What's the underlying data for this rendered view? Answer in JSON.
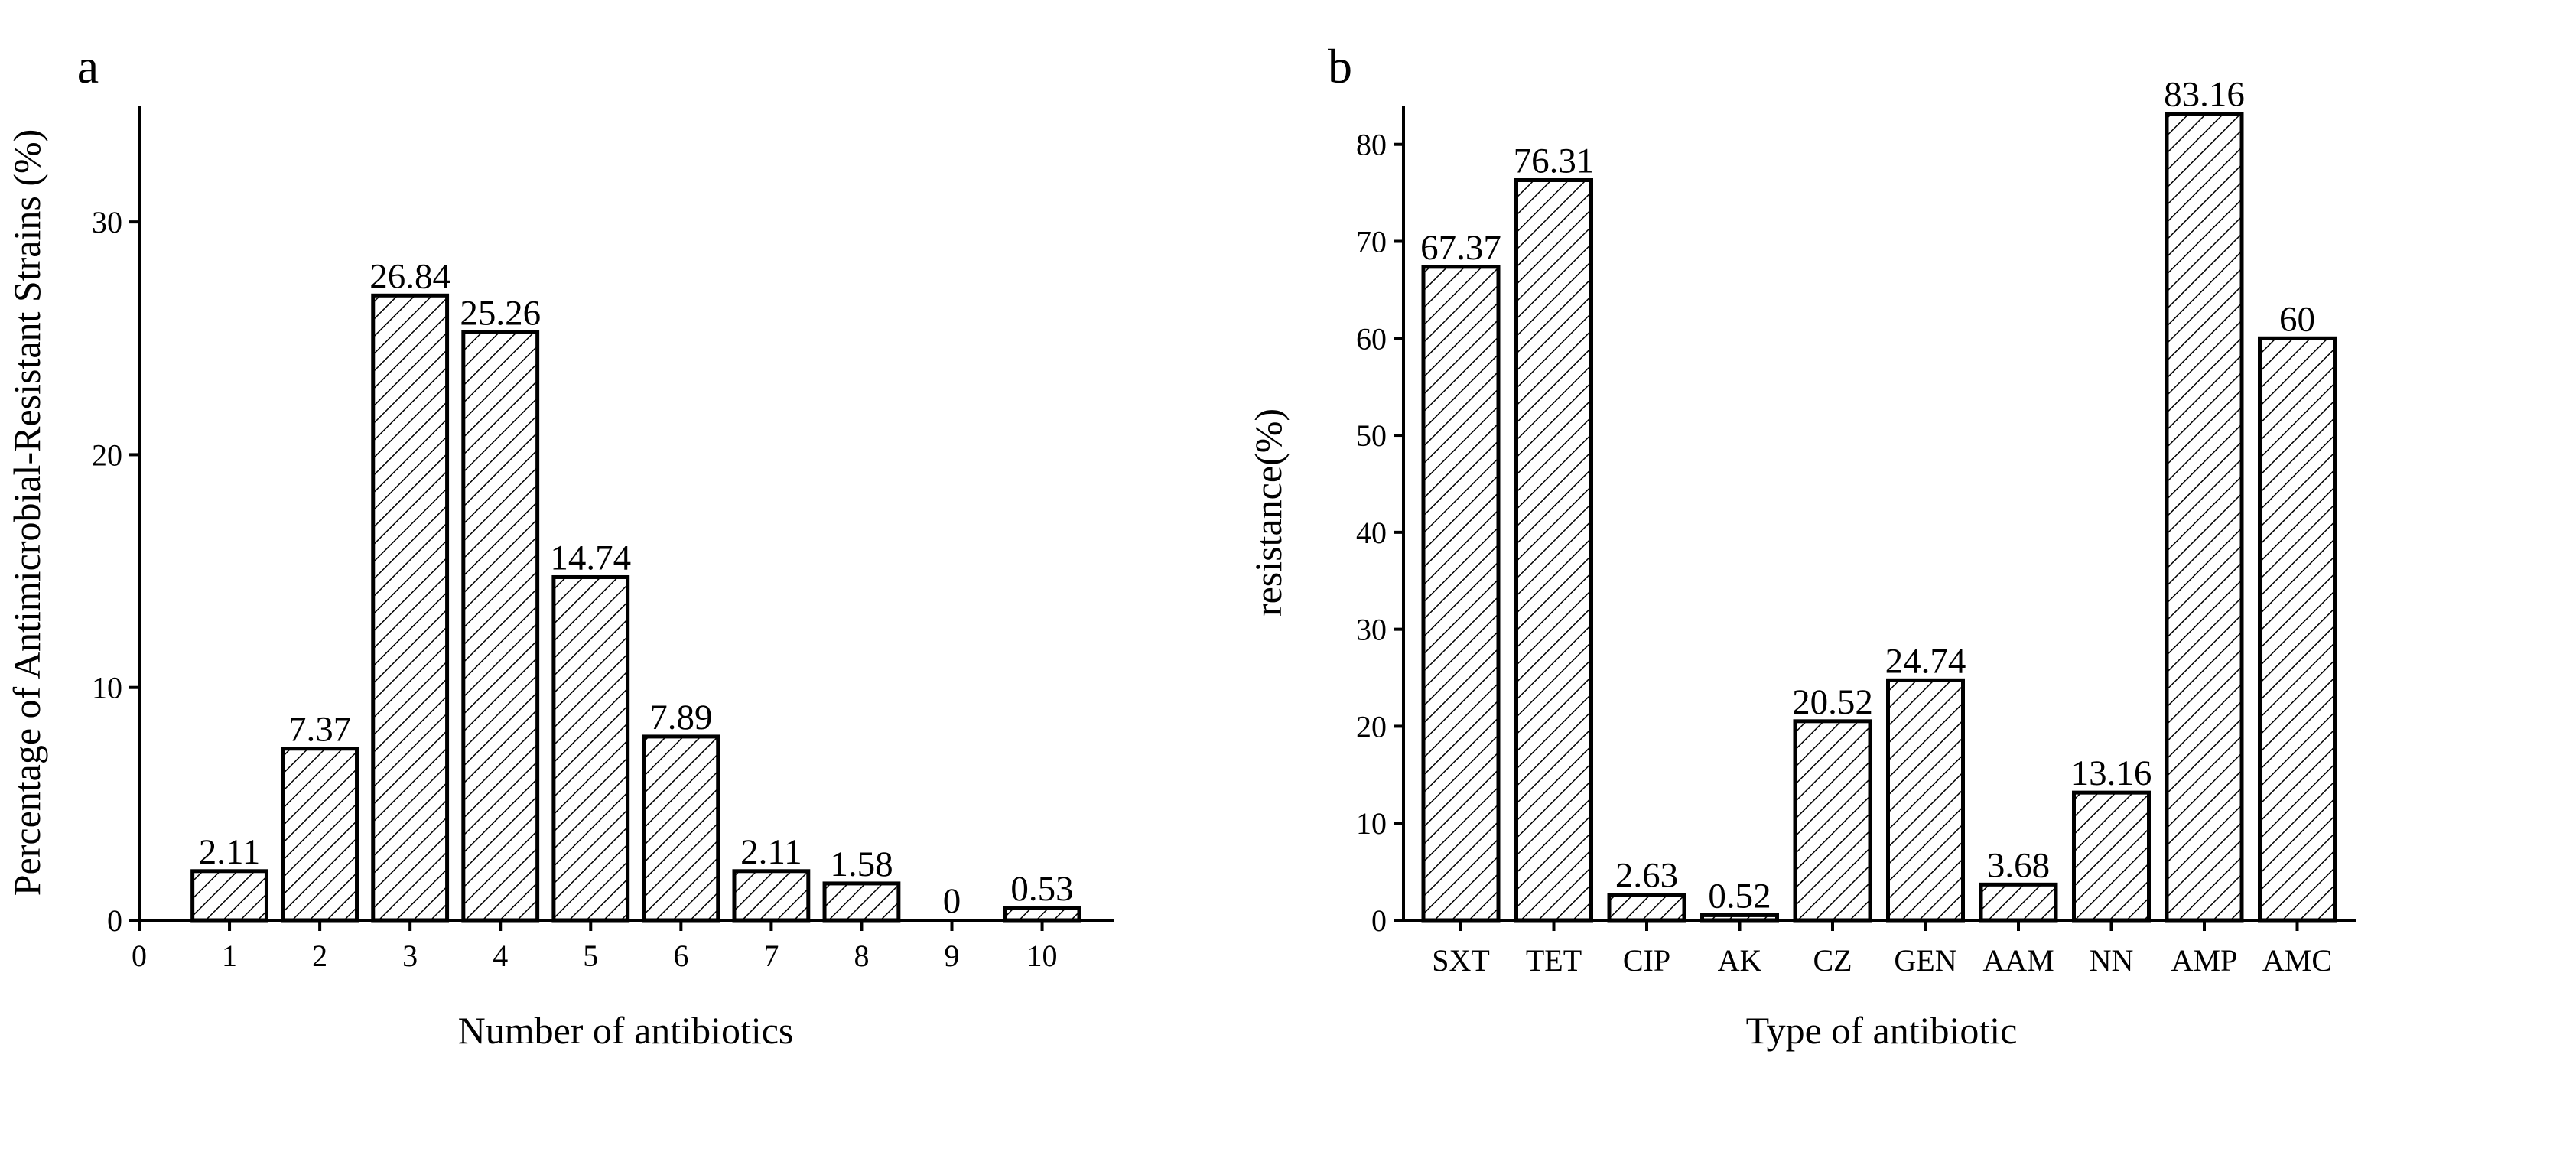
{
  "chart_data": [
    {
      "type": "bar",
      "panel": "a",
      "title": "",
      "xlabel": "Number of antibiotics",
      "ylabel": "Percentage of Antimicrobial-Resistant Strains (%)",
      "x_ticks": [
        "0",
        "1",
        "2",
        "3",
        "4",
        "5",
        "6",
        "7",
        "8",
        "9",
        "10"
      ],
      "categories": [
        "1",
        "2",
        "3",
        "4",
        "5",
        "6",
        "7",
        "8",
        "9",
        "10"
      ],
      "values": [
        2.11,
        7.37,
        26.84,
        25.26,
        14.74,
        7.89,
        2.11,
        1.58,
        0,
        0.53
      ],
      "value_labels": [
        "2.11",
        "7.37",
        "26.84",
        "25.26",
        "14.74",
        "7.89",
        "2.11",
        "1.58",
        "0",
        "0.53"
      ],
      "y_ticks": [
        "0",
        "10",
        "20",
        "30"
      ],
      "ylim": [
        0,
        35
      ],
      "xlim": [
        0,
        10.8
      ],
      "grid": false,
      "legend": "none",
      "fill_pattern": "diagonal hatch"
    },
    {
      "type": "bar",
      "panel": "b",
      "title": "",
      "xlabel": "Type of antibiotic",
      "ylabel": "resistance(%)",
      "categories": [
        "SXT",
        "TET",
        "CIP",
        "AK",
        "CZ",
        "GEN",
        "AAM",
        "NN",
        "AMP",
        "AMC"
      ],
      "values": [
        67.37,
        76.31,
        2.63,
        0.52,
        20.52,
        24.74,
        3.68,
        13.16,
        83.16,
        60
      ],
      "value_labels": [
        "67.37",
        "76.31",
        "2.63",
        "0.52",
        "20.52",
        "24.74",
        "3.68",
        "13.16",
        "83.16",
        "60"
      ],
      "y_ticks": [
        "0",
        "10",
        "20",
        "30",
        "40",
        "50",
        "60",
        "70",
        "80"
      ],
      "ylim": [
        0,
        84
      ],
      "grid": false,
      "legend": "none",
      "fill_pattern": "diagonal hatch"
    }
  ]
}
